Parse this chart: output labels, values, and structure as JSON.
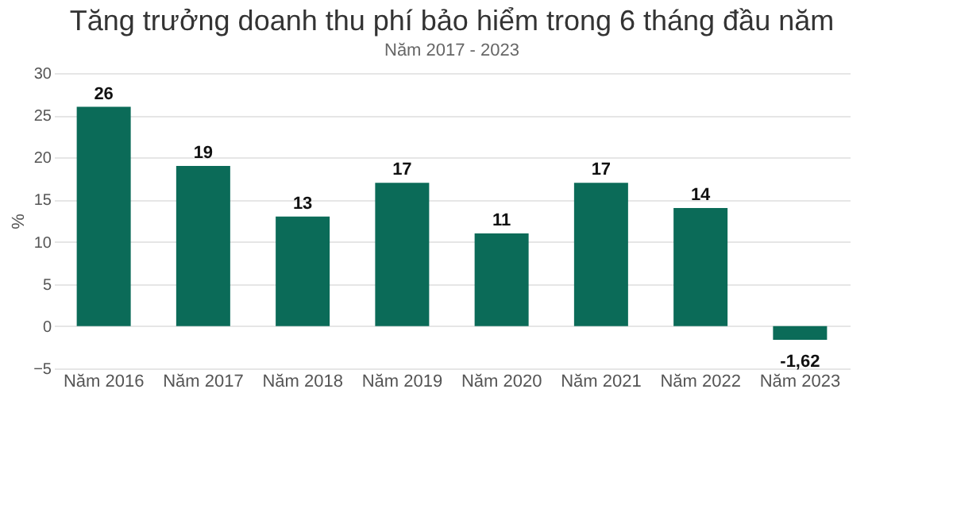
{
  "chart_data": {
    "type": "bar",
    "title": "Tăng trưởng doanh thu phí bảo hiểm trong 6 tháng đầu năm",
    "subtitle": "Năm 2017 - 2023",
    "ylabel": "%",
    "categories": [
      "Năm 2016",
      "Năm 2017",
      "Năm 2018",
      "Năm 2019",
      "Năm 2020",
      "Năm 2021",
      "Năm 2022",
      "Năm 2023"
    ],
    "values": [
      26,
      19,
      13,
      17,
      11,
      17,
      14,
      -1.62
    ],
    "value_labels": [
      "26",
      "19",
      "13",
      "17",
      "11",
      "17",
      "14",
      "-1,62"
    ],
    "color": "#0b6b58",
    "ylim": [
      -5,
      30
    ],
    "yticks": [
      -5,
      0,
      5,
      10,
      15,
      20,
      25,
      30
    ],
    "grid": "y"
  }
}
